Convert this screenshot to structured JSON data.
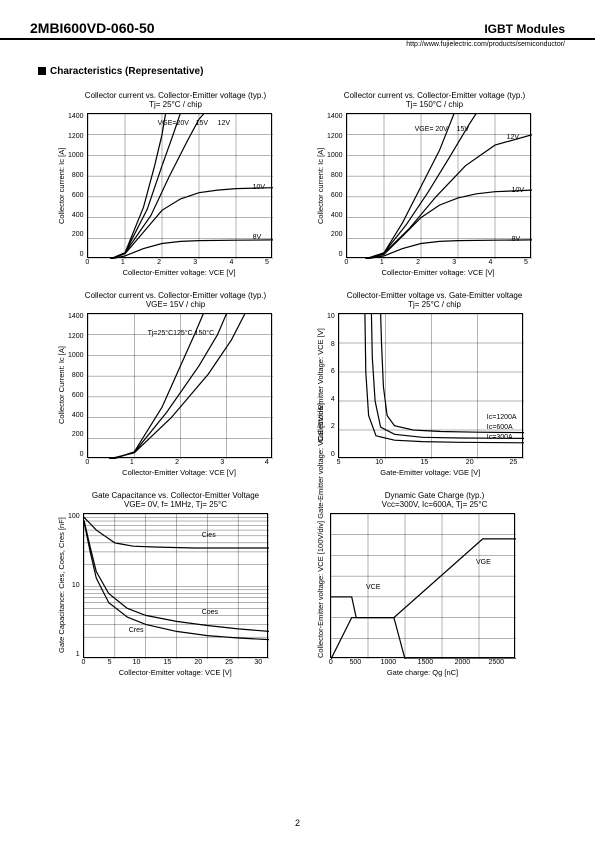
{
  "header": {
    "part_number": "2MBI600VD-060-50",
    "category": "IGBT Modules",
    "url": "http://www.fujielectric.com/products/semiconductor/"
  },
  "section_title": "Characteristics (Representative)",
  "page_number": "2",
  "plot": {
    "width": 185,
    "height": 145,
    "grid_color": "#000000",
    "curve_color": "#000000",
    "background_color": "#ffffff"
  },
  "charts": [
    {
      "title_line1": "Collector current vs. Collector-Emitter voltage (typ.)",
      "title_line2": "Tj= 25°C / chip",
      "xlabel": "Collector-Emitter voltage: VCE [V]",
      "ylabel": "Collector current: Ic [A]",
      "xticks": [
        "0",
        "1",
        "2",
        "3",
        "4",
        "5"
      ],
      "yticks": [
        "1400",
        "1200",
        "1000",
        "800",
        "600",
        "400",
        "200",
        "0"
      ],
      "xlim": [
        0,
        5
      ],
      "ylim": [
        0,
        1400
      ],
      "curves": [
        {
          "label": "VGE=20V",
          "lx": 70,
          "ly": 6,
          "pts": [
            [
              0.6,
              0
            ],
            [
              1.0,
              60
            ],
            [
              1.5,
              500
            ],
            [
              1.8,
              900
            ],
            [
              2.0,
              1200
            ],
            [
              2.1,
              1410
            ]
          ]
        },
        {
          "label": "15V",
          "lx": 108,
          "ly": 6,
          "pts": [
            [
              0.6,
              0
            ],
            [
              1.0,
              60
            ],
            [
              1.6,
              480
            ],
            [
              2.0,
              900
            ],
            [
              2.3,
              1200
            ],
            [
              2.5,
              1410
            ]
          ]
        },
        {
          "label": "12V",
          "lx": 130,
          "ly": 6,
          "pts": [
            [
              0.6,
              0
            ],
            [
              1.0,
              60
            ],
            [
              1.7,
              420
            ],
            [
              2.2,
              800
            ],
            [
              2.7,
              1150
            ],
            [
              3.0,
              1350
            ],
            [
              3.15,
              1410
            ]
          ]
        },
        {
          "label": "10V",
          "lx": 165,
          "ly": 70,
          "pts": [
            [
              0.6,
              0
            ],
            [
              1.0,
              50
            ],
            [
              1.5,
              260
            ],
            [
              2.0,
              470
            ],
            [
              2.5,
              580
            ],
            [
              3.0,
              640
            ],
            [
              3.5,
              665
            ],
            [
              4.0,
              680
            ],
            [
              5.0,
              688
            ]
          ]
        },
        {
          "label": "8V",
          "lx": 165,
          "ly": 120,
          "pts": [
            [
              0.6,
              0
            ],
            [
              1.0,
              30
            ],
            [
              1.5,
              100
            ],
            [
              2.0,
              150
            ],
            [
              2.5,
              170
            ],
            [
              3.0,
              178
            ],
            [
              4.0,
              182
            ],
            [
              5.0,
              184
            ]
          ]
        }
      ]
    },
    {
      "title_line1": "Collector current vs. Collector-Emitter voltage (typ.)",
      "title_line2": "Tj= 150°C / chip",
      "xlabel": "Collector-Emitter voltage: VCE [V]",
      "ylabel": "Collector current: Ic [A]",
      "xticks": [
        "0",
        "1",
        "2",
        "3",
        "4",
        "5"
      ],
      "yticks": [
        "1400",
        "1200",
        "1000",
        "800",
        "600",
        "400",
        "200",
        "0"
      ],
      "xlim": [
        0,
        5
      ],
      "ylim": [
        0,
        1400
      ],
      "curves": [
        {
          "label": "VGE= 20V",
          "lx": 68,
          "ly": 12,
          "pts": [
            [
              0.5,
              0
            ],
            [
              1.0,
              60
            ],
            [
              1.5,
              350
            ],
            [
              2.0,
              700
            ],
            [
              2.5,
              1050
            ],
            [
              2.9,
              1410
            ]
          ]
        },
        {
          "label": "15V",
          "lx": 110,
          "ly": 12,
          "pts": [
            [
              0.5,
              0
            ],
            [
              1.0,
              60
            ],
            [
              1.6,
              330
            ],
            [
              2.2,
              650
            ],
            [
              2.8,
              1000
            ],
            [
              3.3,
              1300
            ],
            [
              3.5,
              1410
            ]
          ]
        },
        {
          "label": "12V",
          "lx": 160,
          "ly": 20,
          "pts": [
            [
              0.5,
              0
            ],
            [
              1.0,
              55
            ],
            [
              1.7,
              300
            ],
            [
              2.4,
              600
            ],
            [
              3.2,
              900
            ],
            [
              4.0,
              1100
            ],
            [
              5.0,
              1200
            ]
          ]
        },
        {
          "label": "10V",
          "lx": 165,
          "ly": 73,
          "pts": [
            [
              0.5,
              0
            ],
            [
              1.0,
              45
            ],
            [
              1.5,
              220
            ],
            [
              2.0,
              400
            ],
            [
              2.5,
              520
            ],
            [
              3.0,
              590
            ],
            [
              3.5,
              630
            ],
            [
              4.0,
              650
            ],
            [
              5.0,
              665
            ]
          ]
        },
        {
          "label": "8V",
          "lx": 165,
          "ly": 122,
          "pts": [
            [
              0.5,
              0
            ],
            [
              1.0,
              30
            ],
            [
              1.5,
              100
            ],
            [
              2.0,
              150
            ],
            [
              2.5,
              170
            ],
            [
              3.0,
              178
            ],
            [
              4.0,
              182
            ],
            [
              5.0,
              184
            ]
          ]
        }
      ]
    },
    {
      "title_line1": "Collector current vs. Collector-Emitter voltage (typ.)",
      "title_line2": "VGE= 15V / chip",
      "xlabel": "Collector-Emitter Voltage: VCE [V]",
      "ylabel": "Collector Current: Ic [A]",
      "xticks": [
        "0",
        "1",
        "2",
        "3",
        "4"
      ],
      "yticks": [
        "1400",
        "1200",
        "1000",
        "800",
        "600",
        "400",
        "200",
        "0"
      ],
      "xlim": [
        0,
        4
      ],
      "ylim": [
        0,
        1400
      ],
      "curves": [
        {
          "label": "Tj=25°C125°C 150°C",
          "lx": 60,
          "ly": 16,
          "pts": [
            [
              0.55,
              0
            ],
            [
              1.0,
              70
            ],
            [
              1.6,
              500
            ],
            [
              2.0,
              900
            ],
            [
              2.3,
              1200
            ],
            [
              2.5,
              1410
            ]
          ]
        },
        {
          "label": "",
          "lx": 0,
          "ly": 0,
          "pts": [
            [
              0.5,
              0
            ],
            [
              1.0,
              65
            ],
            [
              1.7,
              450
            ],
            [
              2.4,
              900
            ],
            [
              2.8,
              1200
            ],
            [
              3.0,
              1410
            ]
          ]
        },
        {
          "label": "",
          "lx": 0,
          "ly": 0,
          "pts": [
            [
              0.45,
              0
            ],
            [
              1.0,
              60
            ],
            [
              1.8,
              400
            ],
            [
              2.6,
              820
            ],
            [
              3.1,
              1150
            ],
            [
              3.4,
              1410
            ]
          ]
        }
      ]
    },
    {
      "title_line1": "Collector-Emitter voltage  vs. Gate-Emitter voltage",
      "title_line2": "Tj= 25°C / chip",
      "xlabel": "Gate-Emitter voltage: VGE [V]",
      "ylabel": "Collector-Emitter Voltage: VCE [V]",
      "xticks": [
        "5",
        "10",
        "15",
        "20",
        "25"
      ],
      "yticks": [
        "10",
        "8",
        "6",
        "4",
        "2",
        "0"
      ],
      "xlim": [
        5,
        25
      ],
      "ylim": [
        0,
        10
      ],
      "curves": [
        {
          "label": "Ic=1200A",
          "lx": 148,
          "ly": 100,
          "pts": [
            [
              9.5,
              10.1
            ],
            [
              9.6,
              8
            ],
            [
              9.8,
              5
            ],
            [
              10.2,
              3
            ],
            [
              11,
              2.3
            ],
            [
              13,
              2.0
            ],
            [
              16,
              1.9
            ],
            [
              20,
              1.85
            ],
            [
              25,
              1.82
            ]
          ]
        },
        {
          "label": "Ic=600A",
          "lx": 148,
          "ly": 110,
          "pts": [
            [
              8.5,
              10.1
            ],
            [
              8.6,
              7
            ],
            [
              8.9,
              4
            ],
            [
              9.5,
              2.2
            ],
            [
              11,
              1.7
            ],
            [
              14,
              1.5
            ],
            [
              18,
              1.45
            ],
            [
              25,
              1.42
            ]
          ]
        },
        {
          "label": "Ic=300A",
          "lx": 148,
          "ly": 120,
          "pts": [
            [
              7.8,
              10.1
            ],
            [
              7.9,
              6
            ],
            [
              8.2,
              3
            ],
            [
              9,
              1.6
            ],
            [
              11,
              1.3
            ],
            [
              14,
              1.2
            ],
            [
              18,
              1.15
            ],
            [
              25,
              1.12
            ]
          ]
        }
      ]
    },
    {
      "title_line1": "Gate Capacitance vs. Collector-Emitter Voltage",
      "title_line2": "VGE= 0V, f= 1MHz, Tj= 25°C",
      "xlabel": "Collector-Emitter voltage: VCE [V]",
      "ylabel": "Gate Capacitance: Cies, Coes, Cres [nF]",
      "xticks": [
        "0",
        "5",
        "10",
        "15",
        "20",
        "25",
        "30"
      ],
      "yticks": [
        "100",
        "10",
        "1"
      ],
      "xlim": [
        0,
        30
      ],
      "ylim_log": [
        1,
        100
      ],
      "log_y": true,
      "curves": [
        {
          "label": "Cies",
          "lx": 118,
          "ly": 18,
          "pts": [
            [
              0,
              90
            ],
            [
              2,
              60
            ],
            [
              5,
              40
            ],
            [
              8,
              36
            ],
            [
              12,
              35
            ],
            [
              18,
              34
            ],
            [
              25,
              34
            ],
            [
              30,
              34
            ]
          ]
        },
        {
          "label": "Coes",
          "lx": 118,
          "ly": 95,
          "pts": [
            [
              0,
              82
            ],
            [
              1,
              35
            ],
            [
              2,
              16
            ],
            [
              4,
              8
            ],
            [
              7,
              5
            ],
            [
              10,
              4
            ],
            [
              15,
              3.3
            ],
            [
              20,
              2.9
            ],
            [
              25,
              2.6
            ],
            [
              30,
              2.4
            ]
          ]
        },
        {
          "label": "Cres",
          "lx": 45,
          "ly": 113,
          "pts": [
            [
              0,
              78
            ],
            [
              1,
              30
            ],
            [
              2,
              13
            ],
            [
              4,
              6
            ],
            [
              7,
              3.8
            ],
            [
              10,
              3
            ],
            [
              15,
              2.4
            ],
            [
              20,
              2.1
            ],
            [
              25,
              1.95
            ],
            [
              30,
              1.85
            ]
          ]
        }
      ]
    },
    {
      "title_line1": "Dynamic Gate Charge (typ.)",
      "title_line2": "Vcc=300V, Ic=600A, Tj= 25°C",
      "xlabel": "Gate charge: Qg [nC]",
      "ylabel": "Collector-Emitter voltage: VCE [100V/div]\nGate-Emitter voltage: VGE [5V/div]",
      "xticks": [
        "0",
        "500",
        "1000",
        "1500",
        "2000",
        "2500"
      ],
      "yticks": [
        "",
        "",
        "",
        "",
        "",
        "",
        "",
        ""
      ],
      "xlim": [
        0,
        2500
      ],
      "ylim": [
        0,
        7
      ],
      "blank_y": true,
      "curves": [
        {
          "label": "VCE",
          "lx": 35,
          "ly": 70,
          "pts": [
            [
              0,
              3.0
            ],
            [
              280,
              3.0
            ],
            [
              340,
              2.0
            ],
            [
              850,
              2.0
            ],
            [
              1000,
              0
            ],
            [
              2500,
              0
            ]
          ]
        },
        {
          "label": "VGE",
          "lx": 145,
          "ly": 45,
          "pts": [
            [
              0,
              0
            ],
            [
              280,
              2.0
            ],
            [
              850,
              2.0
            ],
            [
              2050,
              5.8
            ],
            [
              2500,
              5.8
            ]
          ]
        }
      ]
    }
  ]
}
